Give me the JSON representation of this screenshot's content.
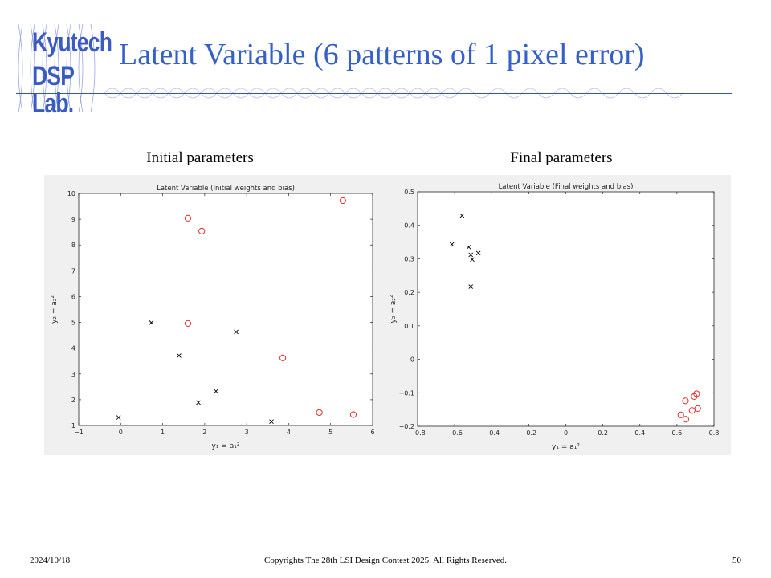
{
  "logo": {
    "line1": "Kyutech",
    "line2": "DSP Lab."
  },
  "header": {
    "title": "Latent Variable (6 patterns of 1 pixel error)"
  },
  "subtitles": {
    "left": "Initial parameters",
    "right": "Final parameters"
  },
  "footer": {
    "date": "2024/10/18",
    "copyright": "Copyrights The 28th LSI Design Contest 2025.  All Rights Reserved.",
    "page": "50"
  },
  "colors": {
    "title": "#3560c8",
    "circle": "#e03030",
    "cross": "#000000",
    "figure_bg": "#f0f0f0"
  },
  "chart_data": [
    {
      "type": "scatter",
      "title": "Latent Variable (Initial weights and bias)",
      "xlabel": "y₁ = a₁²",
      "ylabel": "y₂ = a₂²",
      "xlim": [
        -1,
        6
      ],
      "ylim": [
        1,
        10
      ],
      "xticks": [
        "-1",
        "0",
        "1",
        "2",
        "3",
        "4",
        "5",
        "6"
      ],
      "yticks": [
        "1",
        "2",
        "3",
        "4",
        "5",
        "6",
        "7",
        "8",
        "9",
        "10"
      ],
      "grid": false,
      "series": [
        {
          "marker": "o",
          "color": "#e03030",
          "x": [
            1.6,
            1.93,
            5.29,
            1.6,
            3.86,
            4.73,
            5.54
          ],
          "y": [
            9.04,
            8.54,
            9.72,
            4.96,
            3.62,
            1.5,
            1.42
          ]
        },
        {
          "marker": "x",
          "color": "#000000",
          "x": [
            0.73,
            2.75,
            1.39,
            2.27,
            1.85,
            -0.05,
            3.59
          ],
          "y": [
            4.99,
            4.63,
            3.71,
            2.33,
            1.89,
            1.31,
            1.15
          ]
        }
      ]
    },
    {
      "type": "scatter",
      "title": "Latent Variable (Final weights and bias)",
      "xlabel": "y₁ = a₁²",
      "ylabel": "y₂ = a₂²",
      "xlim": [
        -0.8,
        0.8
      ],
      "ylim": [
        -0.2,
        0.5
      ],
      "xticks": [
        "-0.8",
        "-0.6",
        "-0.4",
        "-0.2",
        "0",
        "0.2",
        "0.4",
        "0.6",
        "0.8"
      ],
      "yticks": [
        "-0.2",
        "-0.1",
        "0",
        "0.1",
        "0.2",
        "0.3",
        "0.4",
        "0.5"
      ],
      "grid": false,
      "series": [
        {
          "marker": "o",
          "color": "#e03030",
          "x": [
            0.706,
            0.693,
            0.646,
            0.712,
            0.682,
            0.621,
            0.648
          ],
          "y": [
            -0.103,
            -0.111,
            -0.124,
            -0.147,
            -0.153,
            -0.166,
            -0.179
          ]
        },
        {
          "marker": "x",
          "color": "#000000",
          "x": [
            -0.56,
            -0.615,
            -0.524,
            -0.513,
            -0.472,
            -0.505,
            -0.513
          ],
          "y": [
            0.429,
            0.343,
            0.335,
            0.312,
            0.317,
            0.298,
            0.217
          ]
        }
      ]
    }
  ]
}
